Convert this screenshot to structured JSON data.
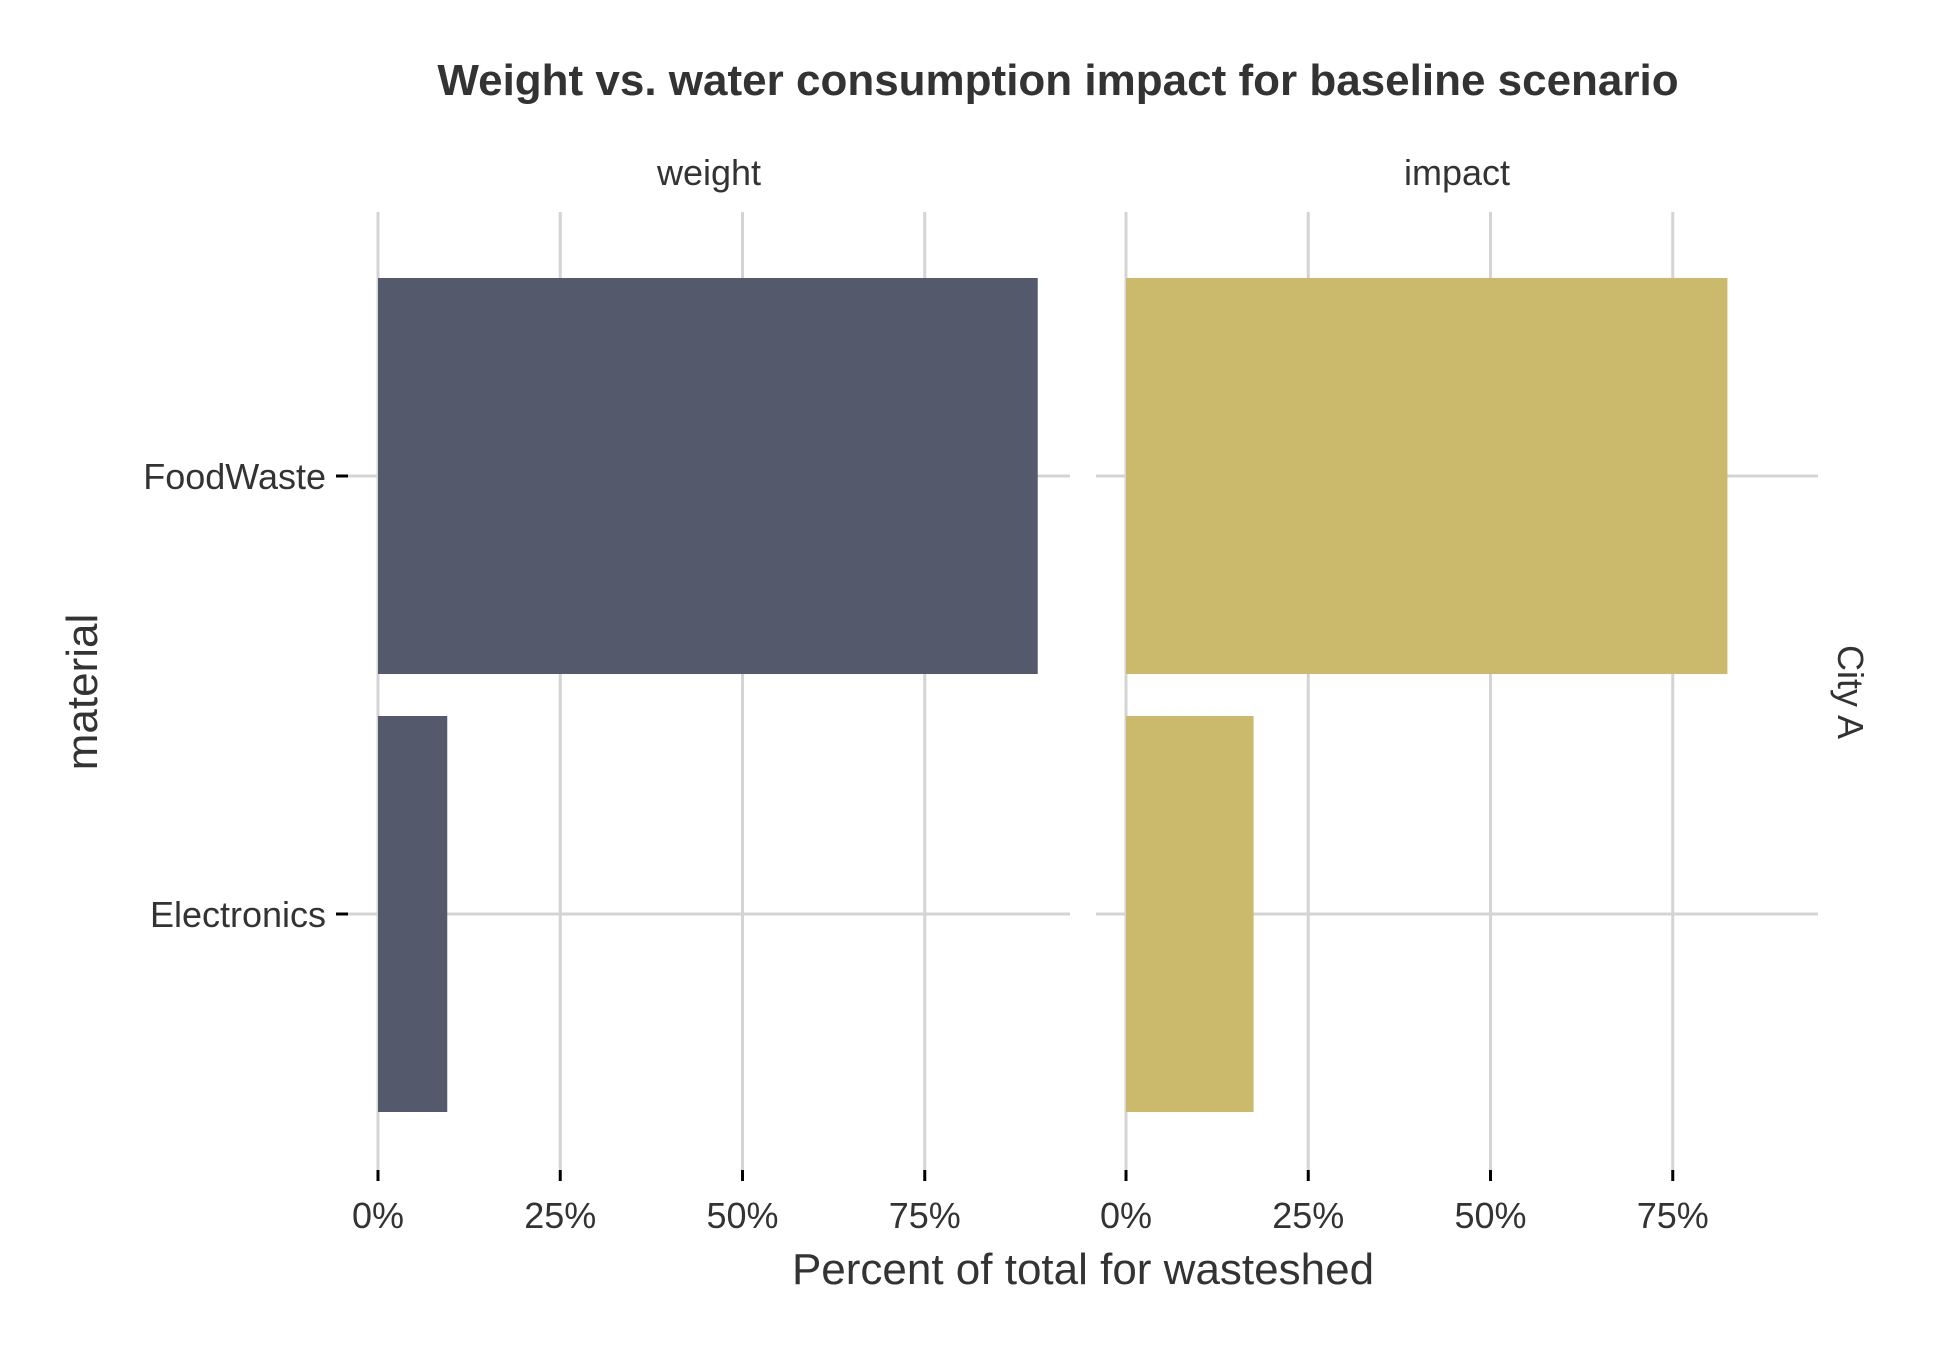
{
  "chart_data": {
    "type": "bar",
    "orientation": "horizontal",
    "title": "Weight vs. water consumption impact for baseline scenario",
    "xlabel": "Percent of total for wasteshed",
    "ylabel": "material",
    "row_facet_label": "City A",
    "categories": [
      "FoodWaste",
      "Electronics"
    ],
    "xlim": [
      0,
      95
    ],
    "x_ticks": [
      {
        "value": 0,
        "label": "0%"
      },
      {
        "value": 25,
        "label": "25%"
      },
      {
        "value": 50,
        "label": "50%"
      },
      {
        "value": 75,
        "label": "75%"
      }
    ],
    "grid": true,
    "legend": "none",
    "panels": [
      {
        "name": "weight",
        "color": "#545a6b",
        "values": [
          90.5,
          9.5
        ]
      },
      {
        "name": "impact",
        "color": "#cbba6b",
        "values": [
          82.5,
          17.5
        ]
      }
    ]
  }
}
